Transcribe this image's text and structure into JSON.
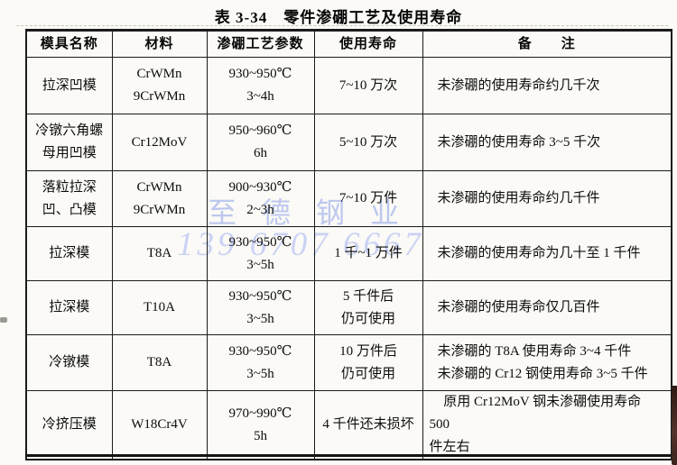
{
  "title": "表 3-34　零件渗硼工艺及使用寿命",
  "table": {
    "headers": [
      "模具名称",
      "材料",
      "渗硼工艺参数",
      "使用寿命",
      "备　　注"
    ],
    "rows": [
      {
        "mold": [
          "拉深凹模"
        ],
        "material": [
          "CrWMn",
          "9CrWMn"
        ],
        "process": [
          "930~950℃",
          "3~4h"
        ],
        "life": [
          "7~10 万次"
        ],
        "remark": [
          "未渗硼的使用寿命约几千次"
        ]
      },
      {
        "mold": [
          "冷镦六角螺",
          "母用凹模"
        ],
        "material": [
          "Cr12MoV"
        ],
        "process": [
          "950~960℃",
          "6h"
        ],
        "life": [
          "5~10 万次"
        ],
        "remark": [
          "未渗硼的使用寿命 3~5 千次"
        ]
      },
      {
        "mold": [
          "落粒拉深",
          "凹、凸模"
        ],
        "material": [
          "CrWMn",
          "9CrWMn"
        ],
        "process": [
          "900~930℃",
          "2~3h"
        ],
        "life": [
          "7~10 万件"
        ],
        "remark": [
          "未渗硼的使用寿命约几千件"
        ]
      },
      {
        "mold": [
          "拉深模"
        ],
        "material": [
          "T8A"
        ],
        "process": [
          "930~950℃",
          "3~5h"
        ],
        "life": [
          "1 千~1 万件"
        ],
        "remark": [
          "未渗硼的使用寿命为几十至 1 千件"
        ]
      },
      {
        "mold": [
          "拉深模"
        ],
        "material": [
          "T10A"
        ],
        "process": [
          "930~950℃",
          "3~5h"
        ],
        "life": [
          "5 千件后",
          "仍可使用"
        ],
        "remark": [
          "未渗硼的使用寿命仅几百件"
        ]
      },
      {
        "mold": [
          "冷镦模"
        ],
        "material": [
          "T8A"
        ],
        "process": [
          "930~950℃",
          "3~5h"
        ],
        "life": [
          "10 万件后",
          "仍可使用"
        ],
        "remark": [
          "未渗硼的 T8A 使用寿命 3~4 千件",
          "未渗硼的 Cr12 钢使用寿命 3~5 千件"
        ]
      },
      {
        "mold": [
          "冷挤压模"
        ],
        "material": [
          "W18Cr4V"
        ],
        "process": [
          "970~990℃",
          "5h"
        ],
        "life": [
          "4 千件还未损坏"
        ],
        "remark": [
          "原用 Cr12MoV 钢未渗硼使用寿命 500",
          "件左右"
        ]
      }
    ]
  },
  "watermark": {
    "company": "至德钢业",
    "phone": "139 6707 6667"
  },
  "colors": {
    "ink": "#0d0d0d",
    "paper": "#fbfaf6",
    "watermark_blue": "#8a9ee8"
  }
}
